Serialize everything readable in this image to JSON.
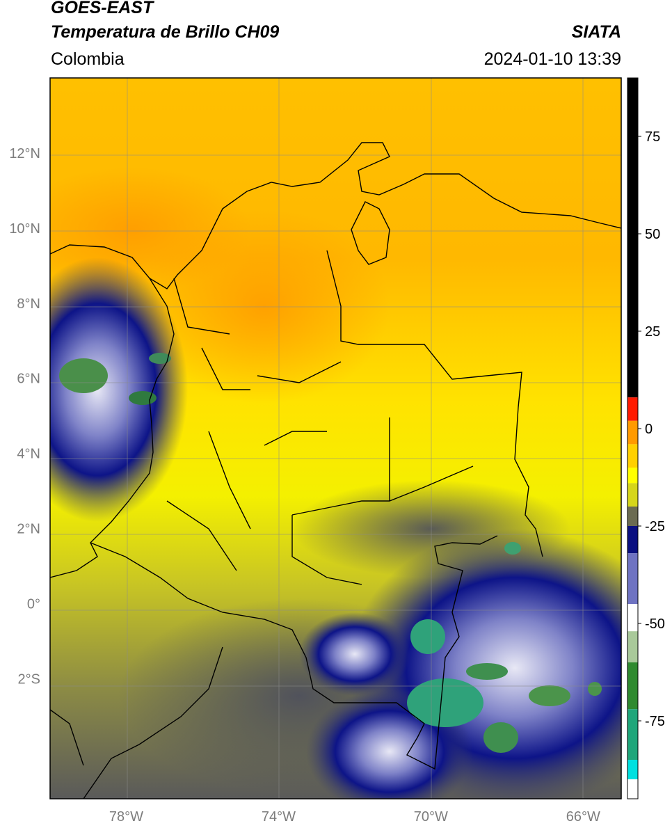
{
  "header": {
    "satellite": "GOES-EAST",
    "product": "Temperatura de Brillo CH09",
    "org": "SIATA",
    "region": "Colombia",
    "datetime": "2024-01-10 13:39"
  },
  "map": {
    "lon_range": [
      -80,
      -65
    ],
    "lat_range": [
      -5.2,
      14
    ],
    "lon_ticks": [
      {
        "value": -78,
        "label": "78°W"
      },
      {
        "value": -74,
        "label": "74°W"
      },
      {
        "value": -70,
        "label": "70°W"
      },
      {
        "value": -66,
        "label": "66°W"
      }
    ],
    "lat_ticks": [
      {
        "value": 12,
        "label": "12°N"
      },
      {
        "value": 10,
        "label": "10°N"
      },
      {
        "value": 8,
        "label": "8°N"
      },
      {
        "value": 6,
        "label": "6°N"
      },
      {
        "value": 4,
        "label": "4°N"
      },
      {
        "value": 2,
        "label": "2°N"
      },
      {
        "value": 0,
        "label": "0°"
      },
      {
        "value": -2,
        "label": "2°S"
      }
    ]
  },
  "colorbar": {
    "range": [
      -95,
      90
    ],
    "ticks": [
      {
        "value": 75,
        "label": "75"
      },
      {
        "value": 50,
        "label": "50"
      },
      {
        "value": 25,
        "label": "25"
      },
      {
        "value": 0,
        "label": "0"
      },
      {
        "value": -25,
        "label": "-25"
      },
      {
        "value": -50,
        "label": "-50"
      },
      {
        "value": -75,
        "label": "-75"
      }
    ],
    "segments": [
      {
        "from": 8,
        "to": 90,
        "color": "#000000"
      },
      {
        "from": 2,
        "to": 8,
        "color": "#ff1a00"
      },
      {
        "from": -4,
        "to": 2,
        "color": "#ff9a00"
      },
      {
        "from": -10,
        "to": -4,
        "color": "#ffd000"
      },
      {
        "from": -14,
        "to": -10,
        "color": "#ffff00"
      },
      {
        "from": -20,
        "to": -14,
        "color": "#d6d61a"
      },
      {
        "from": -25,
        "to": -20,
        "color": "#6b6b52"
      },
      {
        "from": -32,
        "to": -25,
        "color": "#0a0f80"
      },
      {
        "from": -45,
        "to": -32,
        "color": "#6f73c2"
      },
      {
        "from": -52,
        "to": -45,
        "color": "#ffffff"
      },
      {
        "from": -60,
        "to": -52,
        "color": "#a9c99a"
      },
      {
        "from": -72,
        "to": -60,
        "color": "#2f8a2f"
      },
      {
        "from": -85,
        "to": -72,
        "color": "#1fa67a"
      },
      {
        "from": -90,
        "to": -85,
        "color": "#00e0e0"
      },
      {
        "from": -95,
        "to": -90,
        "color": "#ffffff"
      }
    ]
  }
}
